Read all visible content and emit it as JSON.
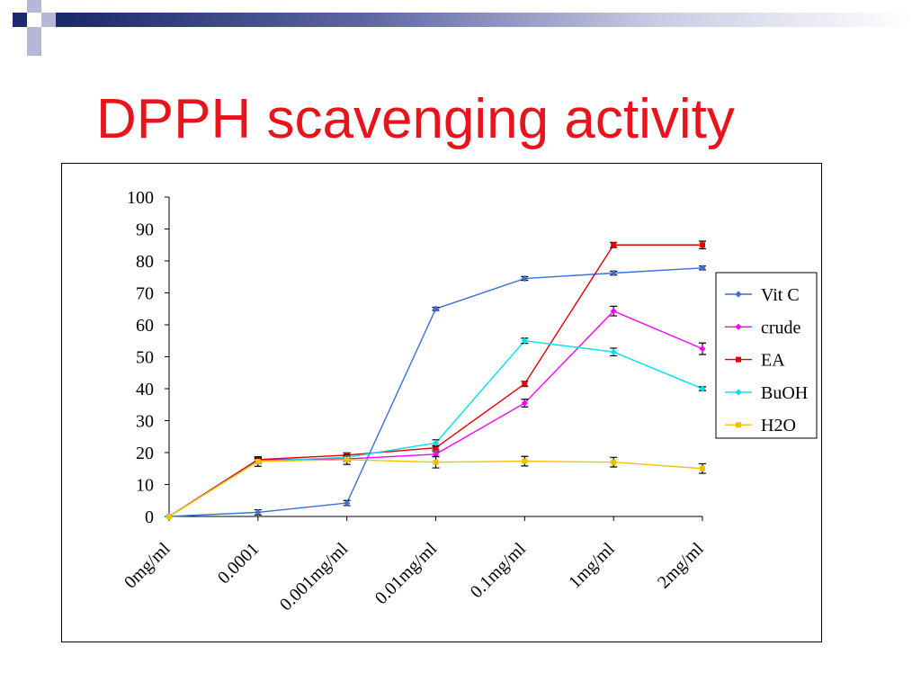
{
  "slide": {
    "title": "DPPH scavenging activity",
    "title_color": "#e8141b"
  },
  "theme": {
    "navy": "#1c2a6e",
    "lavender": "#b4b8d6"
  },
  "chart_data": {
    "type": "line",
    "title": "",
    "xlabel": "",
    "ylabel": "",
    "categories": [
      "0mg/ml",
      "0.0001",
      "0.001mg/ml",
      "0.01mg/ml",
      "0.1mg/ml",
      "1mg/ml",
      "2mg/ml"
    ],
    "ylim": [
      0,
      100
    ],
    "yticks": [
      0,
      10,
      20,
      30,
      40,
      50,
      60,
      70,
      80,
      90,
      100
    ],
    "grid": false,
    "legend": "right",
    "error_bar_color": "#000000",
    "series": [
      {
        "name": "Vit C",
        "color": "#3a6fd8",
        "marker": "diamond",
        "values": [
          0,
          1.3,
          4.2,
          65.0,
          74.5,
          76.2,
          77.8
        ],
        "errors": [
          0,
          0.8,
          0.8,
          0.5,
          0.6,
          0.6,
          0.6
        ]
      },
      {
        "name": "crude",
        "color": "#ff00ff",
        "marker": "diamond",
        "values": [
          0,
          17.8,
          18.0,
          19.5,
          35.5,
          64.3,
          52.5
        ],
        "errors": [
          0,
          0.6,
          0.8,
          0.8,
          1.2,
          1.5,
          1.8
        ]
      },
      {
        "name": "EA",
        "color": "#e00000",
        "marker": "square",
        "values": [
          0,
          17.8,
          19.2,
          21.5,
          41.5,
          85.0,
          85.0
        ],
        "errors": [
          0,
          0.5,
          0.7,
          0.7,
          0.8,
          0.8,
          1.2
        ]
      },
      {
        "name": "BuOH",
        "color": "#00e0ee",
        "marker": "diamond",
        "values": [
          0,
          17.3,
          18.5,
          23.0,
          55.0,
          51.5,
          40.0
        ],
        "errors": [
          0,
          0.7,
          0.8,
          1.0,
          0.8,
          1.2,
          0.6
        ]
      },
      {
        "name": "H2O",
        "color": "#f2c000",
        "marker": "square",
        "values": [
          0,
          17.2,
          17.8,
          17.0,
          17.3,
          17.0,
          15.0
        ],
        "errors": [
          0,
          1.5,
          1.5,
          1.8,
          1.5,
          1.5,
          1.5
        ]
      }
    ]
  }
}
